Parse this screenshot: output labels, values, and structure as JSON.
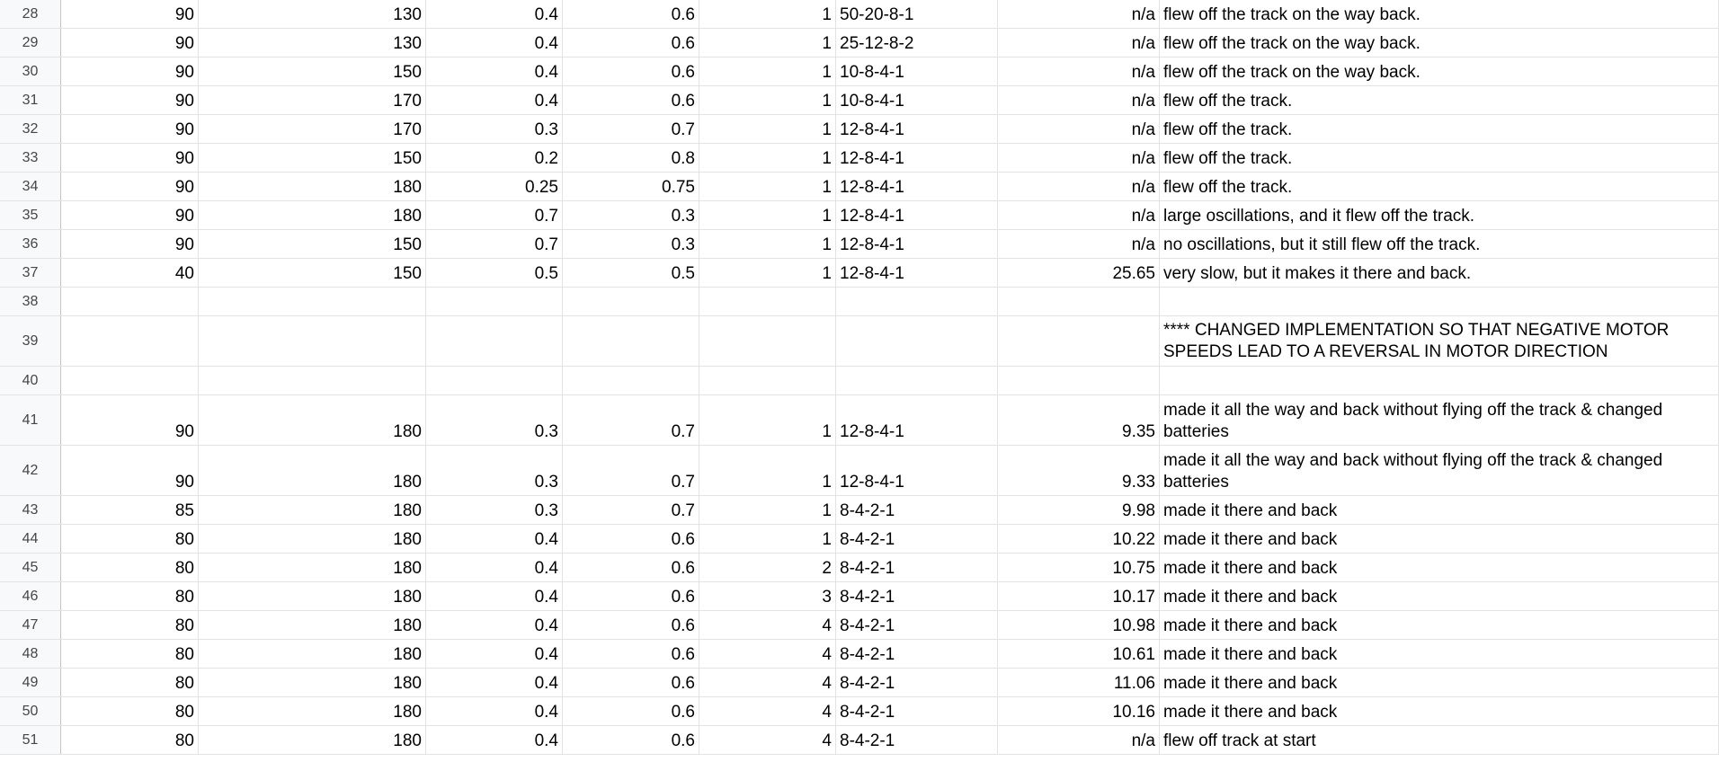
{
  "sheet": {
    "rows": [
      {
        "n": "28",
        "a": "90",
        "b": "130",
        "c": "0.4",
        "d": "0.6",
        "e": "1",
        "f": "50-20-8-1",
        "g": "n/a",
        "h": "flew off the track on the way back."
      },
      {
        "n": "29",
        "a": "90",
        "b": "130",
        "c": "0.4",
        "d": "0.6",
        "e": "1",
        "f": "25-12-8-2",
        "g": "n/a",
        "h": "flew off the track on the way back."
      },
      {
        "n": "30",
        "a": "90",
        "b": "150",
        "c": "0.4",
        "d": "0.6",
        "e": "1",
        "f": "10-8-4-1",
        "g": "n/a",
        "h": "flew off the track on the way back."
      },
      {
        "n": "31",
        "a": "90",
        "b": "170",
        "c": "0.4",
        "d": "0.6",
        "e": "1",
        "f": "10-8-4-1",
        "g": "n/a",
        "h": "flew off the track."
      },
      {
        "n": "32",
        "a": "90",
        "b": "170",
        "c": "0.3",
        "d": "0.7",
        "e": "1",
        "f": "12-8-4-1",
        "g": "n/a",
        "h": "flew off the track."
      },
      {
        "n": "33",
        "a": "90",
        "b": "150",
        "c": "0.2",
        "d": "0.8",
        "e": "1",
        "f": "12-8-4-1",
        "g": "n/a",
        "h": "flew off the track."
      },
      {
        "n": "34",
        "a": "90",
        "b": "180",
        "c": "0.25",
        "d": "0.75",
        "e": "1",
        "f": "12-8-4-1",
        "g": "n/a",
        "h": "flew off the track."
      },
      {
        "n": "35",
        "a": "90",
        "b": "180",
        "c": "0.7",
        "d": "0.3",
        "e": "1",
        "f": "12-8-4-1",
        "g": "n/a",
        "h": "large oscillations, and it flew off the track."
      },
      {
        "n": "36",
        "a": "90",
        "b": "150",
        "c": "0.7",
        "d": "0.3",
        "e": "1",
        "f": "12-8-4-1",
        "g": "n/a",
        "h": "no oscillations, but it still flew off the track."
      },
      {
        "n": "37",
        "a": "40",
        "b": "150",
        "c": "0.5",
        "d": "0.5",
        "e": "1",
        "f": "12-8-4-1",
        "g": "25.65",
        "h": "very slow, but it makes it there and back."
      },
      {
        "n": "38",
        "a": "",
        "b": "",
        "c": "",
        "d": "",
        "e": "",
        "f": "",
        "g": "",
        "h": ""
      },
      {
        "n": "39",
        "a": "",
        "b": "",
        "c": "",
        "d": "",
        "e": "",
        "f": "",
        "g": "",
        "h": "**** CHANGED IMPLEMENTATION SO THAT NEGATIVE MOTOR SPEEDS LEAD TO A REVERSAL IN MOTOR DIRECTION"
      },
      {
        "n": "40",
        "a": "",
        "b": "",
        "c": "",
        "d": "",
        "e": "",
        "f": "",
        "g": "",
        "h": ""
      },
      {
        "n": "41",
        "a": "90",
        "b": "180",
        "c": "0.3",
        "d": "0.7",
        "e": "1",
        "f": "12-8-4-1",
        "g": "9.35",
        "h": "made it all the way and back without flying off the track & changed batteries"
      },
      {
        "n": "42",
        "a": "90",
        "b": "180",
        "c": "0.3",
        "d": "0.7",
        "e": "1",
        "f": "12-8-4-1",
        "g": "9.33",
        "h": "made it all the way and back without flying off the track & changed batteries"
      },
      {
        "n": "43",
        "a": "85",
        "b": "180",
        "c": "0.3",
        "d": "0.7",
        "e": "1",
        "f": "8-4-2-1",
        "g": "9.98",
        "h": "made it there and back"
      },
      {
        "n": "44",
        "a": "80",
        "b": "180",
        "c": "0.4",
        "d": "0.6",
        "e": "1",
        "f": "8-4-2-1",
        "g": "10.22",
        "h": "made it there and back"
      },
      {
        "n": "45",
        "a": "80",
        "b": "180",
        "c": "0.4",
        "d": "0.6",
        "e": "2",
        "f": "8-4-2-1",
        "g": "10.75",
        "h": "made it there and back"
      },
      {
        "n": "46",
        "a": "80",
        "b": "180",
        "c": "0.4",
        "d": "0.6",
        "e": "3",
        "f": "8-4-2-1",
        "g": "10.17",
        "h": "made it there and back"
      },
      {
        "n": "47",
        "a": "80",
        "b": "180",
        "c": "0.4",
        "d": "0.6",
        "e": "4",
        "f": "8-4-2-1",
        "g": "10.98",
        "h": "made it there and back"
      },
      {
        "n": "48",
        "a": "80",
        "b": "180",
        "c": "0.4",
        "d": "0.6",
        "e": "4",
        "f": "8-4-2-1",
        "g": "10.61",
        "h": "made it there and back"
      },
      {
        "n": "49",
        "a": "80",
        "b": "180",
        "c": "0.4",
        "d": "0.6",
        "e": "4",
        "f": "8-4-2-1",
        "g": "11.06",
        "h": "made it there and back"
      },
      {
        "n": "50",
        "a": "80",
        "b": "180",
        "c": "0.4",
        "d": "0.6",
        "e": "4",
        "f": "8-4-2-1",
        "g": "10.16",
        "h": "made it there and back"
      },
      {
        "n": "51",
        "a": "80",
        "b": "180",
        "c": "0.4",
        "d": "0.6",
        "e": "4",
        "f": "8-4-2-1",
        "g": "n/a",
        "h": "flew off track at start"
      }
    ]
  }
}
